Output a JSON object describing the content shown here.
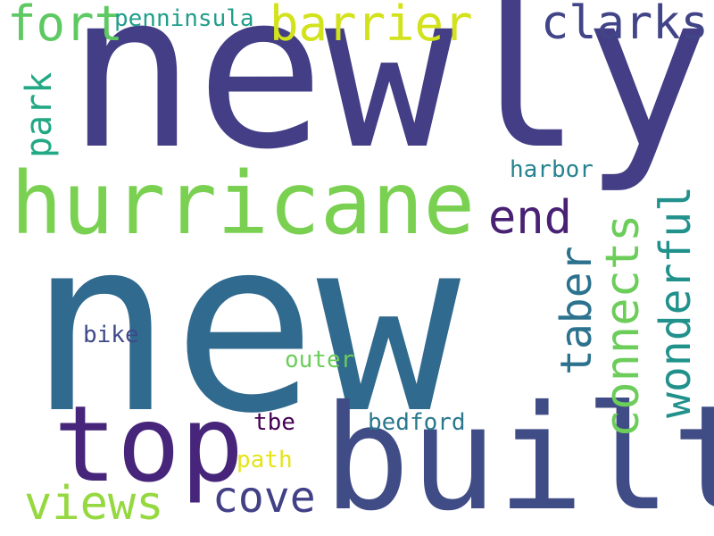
{
  "words": [
    {
      "text": "new",
      "color": "#306a8e"
    },
    {
      "text": "newly",
      "color": "#433e85"
    },
    {
      "text": "built",
      "color": "#404c85"
    },
    {
      "text": "hurricane",
      "color": "#7ad151"
    },
    {
      "text": "top",
      "color": "#46257a"
    },
    {
      "text": "barrier",
      "color": "#d2e21b"
    },
    {
      "text": "fort",
      "color": "#5ec962"
    },
    {
      "text": "clarks",
      "color": "#414487"
    },
    {
      "text": "end",
      "color": "#482173"
    },
    {
      "text": "views",
      "color": "#95d840"
    },
    {
      "text": "cove",
      "color": "#424086"
    },
    {
      "text": "penninsula",
      "color": "#1f9e89"
    },
    {
      "text": "harbor",
      "color": "#26828e"
    },
    {
      "text": "bike",
      "color": "#3e4989"
    },
    {
      "text": "outer",
      "color": "#6ccd5a"
    },
    {
      "text": "tbe",
      "color": "#440154"
    },
    {
      "text": "bedford",
      "color": "#2a788e"
    },
    {
      "text": "path",
      "color": "#e5e419"
    },
    {
      "text": "park",
      "color": "#22a884"
    },
    {
      "text": "taber",
      "color": "#2c728e"
    },
    {
      "text": "connects",
      "color": "#6ccd5a"
    },
    {
      "text": "wonderful",
      "color": "#21918c"
    }
  ]
}
